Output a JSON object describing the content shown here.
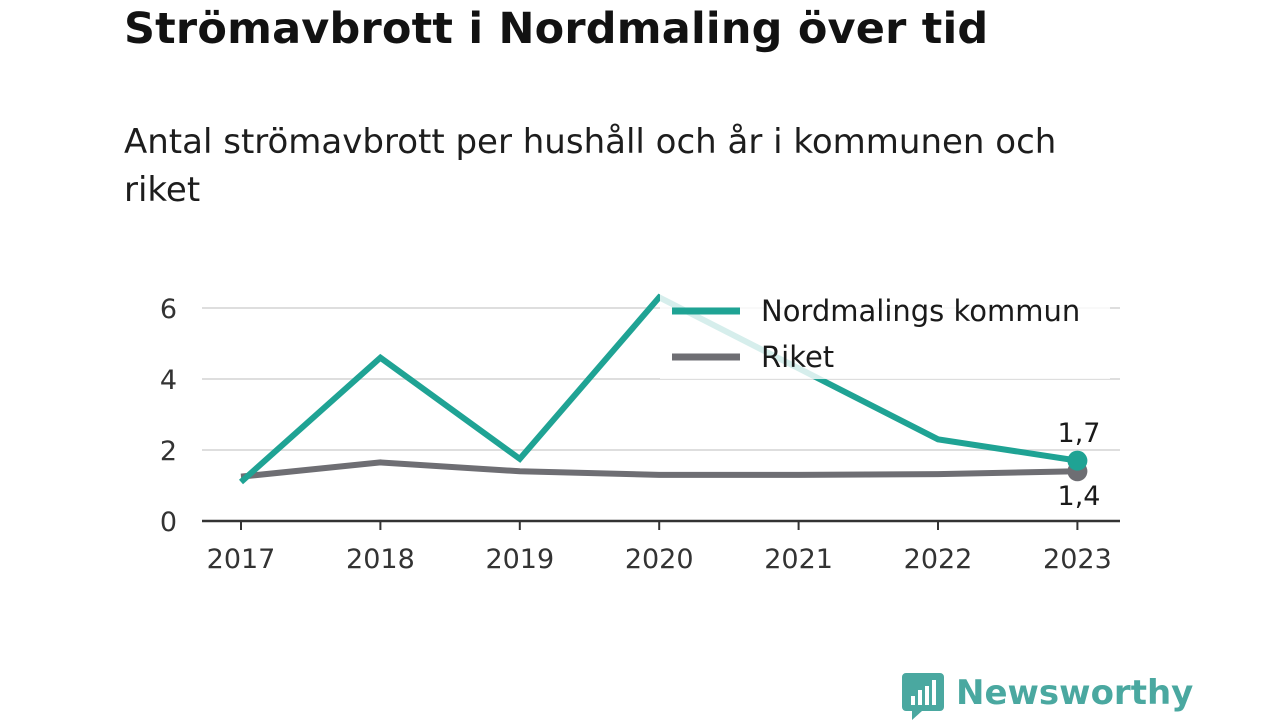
{
  "title": "Strömavbrott i Nordmaling över tid",
  "subtitle": "Antal strömavbrott per hushåll och år i kommunen och riket",
  "brand": {
    "name": "Newsworthy",
    "color": "#4aa8a0"
  },
  "chart_data": {
    "type": "line",
    "x": [
      "2017",
      "2018",
      "2019",
      "2020",
      "2021",
      "2022",
      "2023"
    ],
    "ylim": [
      0,
      6.5
    ],
    "yticks": [
      0,
      2,
      4,
      6
    ],
    "ytick_labels": [
      "0",
      "2",
      "4",
      "6"
    ],
    "grid": true,
    "legend_position": "top-right",
    "series": [
      {
        "name": "Nordmalings kommun",
        "color": "#1fa394",
        "values": [
          1.1,
          4.6,
          1.75,
          6.3,
          4.3,
          2.3,
          1.7
        ],
        "end_label": "1,7"
      },
      {
        "name": "Riket",
        "color": "#6e6e73",
        "values": [
          1.25,
          1.65,
          1.4,
          1.3,
          1.3,
          1.32,
          1.4
        ],
        "end_label": "1,4"
      }
    ]
  }
}
